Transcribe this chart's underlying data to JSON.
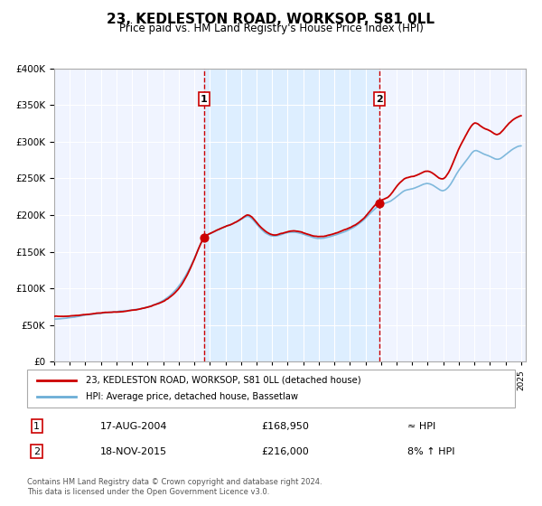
{
  "title": "23, KEDLESTON ROAD, WORKSOP, S81 0LL",
  "subtitle": "Price paid vs. HM Land Registry's House Price Index (HPI)",
  "legend_line1": "23, KEDLESTON ROAD, WORKSOP, S81 0LL (detached house)",
  "legend_line2": "HPI: Average price, detached house, Bassetlaw",
  "annotation1_label": "1",
  "annotation1_date": "17-AUG-2004",
  "annotation1_price": "£168,950",
  "annotation1_hpi": "≈ HPI",
  "annotation2_label": "2",
  "annotation2_date": "18-NOV-2015",
  "annotation2_price": "£216,000",
  "annotation2_hpi": "8% ↑ HPI",
  "footer1": "Contains HM Land Registry data © Crown copyright and database right 2024.",
  "footer2": "This data is licensed under the Open Government Licence v3.0.",
  "hpi_color": "#6baed6",
  "price_color": "#cc0000",
  "marker_color": "#cc0000",
  "vline_color": "#cc0000",
  "shading_color": "#ddeeff",
  "background_color": "#f0f4ff",
  "grid_color": "#ffffff",
  "ylim": [
    0,
    400000
  ],
  "xlim_start": 1995.0,
  "xlim_end": 2025.3,
  "marker1_x": 2004.63,
  "marker1_y": 168950,
  "marker2_x": 2015.88,
  "marker2_y": 216000
}
